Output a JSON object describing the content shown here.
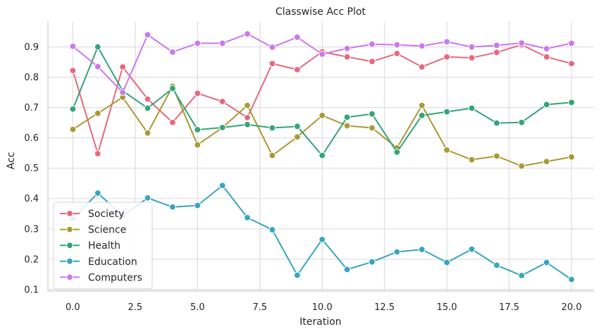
{
  "chart_data": {
    "type": "line",
    "title": "Classwise Acc Plot",
    "xlabel": "Iteration",
    "ylabel": "Acc",
    "xlim": [
      -1,
      20.9
    ],
    "ylim": [
      0.095,
      0.985
    ],
    "xticks": [
      0.0,
      2.5,
      5.0,
      7.5,
      10.0,
      12.5,
      15.0,
      17.5,
      20.0
    ],
    "xtick_labels": [
      "0.0",
      "2.5",
      "5.0",
      "7.5",
      "10.0",
      "12.5",
      "15.0",
      "17.5",
      "20.0"
    ],
    "yticks": [
      0.1,
      0.2,
      0.3,
      0.4,
      0.5,
      0.6,
      0.7,
      0.8,
      0.9
    ],
    "ytick_labels": [
      "0.1",
      "0.2",
      "0.3",
      "0.4",
      "0.5",
      "0.6",
      "0.7",
      "0.8",
      "0.9"
    ],
    "grid": true,
    "legend_position": "lower-left",
    "x": [
      0,
      1,
      2,
      3,
      4,
      5,
      6,
      7,
      8,
      9,
      10,
      11,
      12,
      13,
      14,
      15,
      16,
      17,
      18,
      19,
      20
    ],
    "series": [
      {
        "name": "Society",
        "color": "#e8687f",
        "values": [
          0.822,
          0.548,
          0.834,
          0.728,
          0.651,
          0.747,
          0.72,
          0.667,
          0.845,
          0.825,
          0.884,
          0.867,
          0.852,
          0.878,
          0.834,
          0.867,
          0.864,
          0.882,
          0.907,
          0.867,
          0.845
        ]
      },
      {
        "name": "Science",
        "color": "#a99a36",
        "values": [
          0.628,
          0.681,
          0.734,
          0.616,
          0.77,
          0.577,
          0.634,
          0.707,
          0.542,
          0.603,
          0.674,
          0.64,
          0.633,
          0.567,
          0.707,
          0.56,
          0.528,
          0.54,
          0.507,
          0.522,
          0.537
        ]
      },
      {
        "name": "Health",
        "color": "#33a577",
        "values": [
          0.695,
          0.9,
          0.755,
          0.698,
          0.763,
          0.627,
          0.634,
          0.644,
          0.633,
          0.638,
          0.542,
          0.668,
          0.679,
          0.553,
          0.674,
          0.686,
          0.698,
          0.649,
          0.651,
          0.71,
          0.717
        ]
      },
      {
        "name": "Education",
        "color": "#37a6be",
        "values": [
          0.333,
          0.418,
          0.343,
          0.402,
          0.372,
          0.377,
          0.443,
          0.337,
          0.297,
          0.147,
          0.265,
          0.166,
          0.191,
          0.224,
          0.232,
          0.189,
          0.233,
          0.18,
          0.146,
          0.189,
          0.133
        ]
      },
      {
        "name": "Computers",
        "color": "#cb78ed",
        "values": [
          0.902,
          0.835,
          0.75,
          0.94,
          0.883,
          0.912,
          0.912,
          0.943,
          0.899,
          0.932,
          0.876,
          0.895,
          0.909,
          0.907,
          0.903,
          0.917,
          0.9,
          0.905,
          0.913,
          0.894,
          0.912
        ]
      }
    ]
  }
}
